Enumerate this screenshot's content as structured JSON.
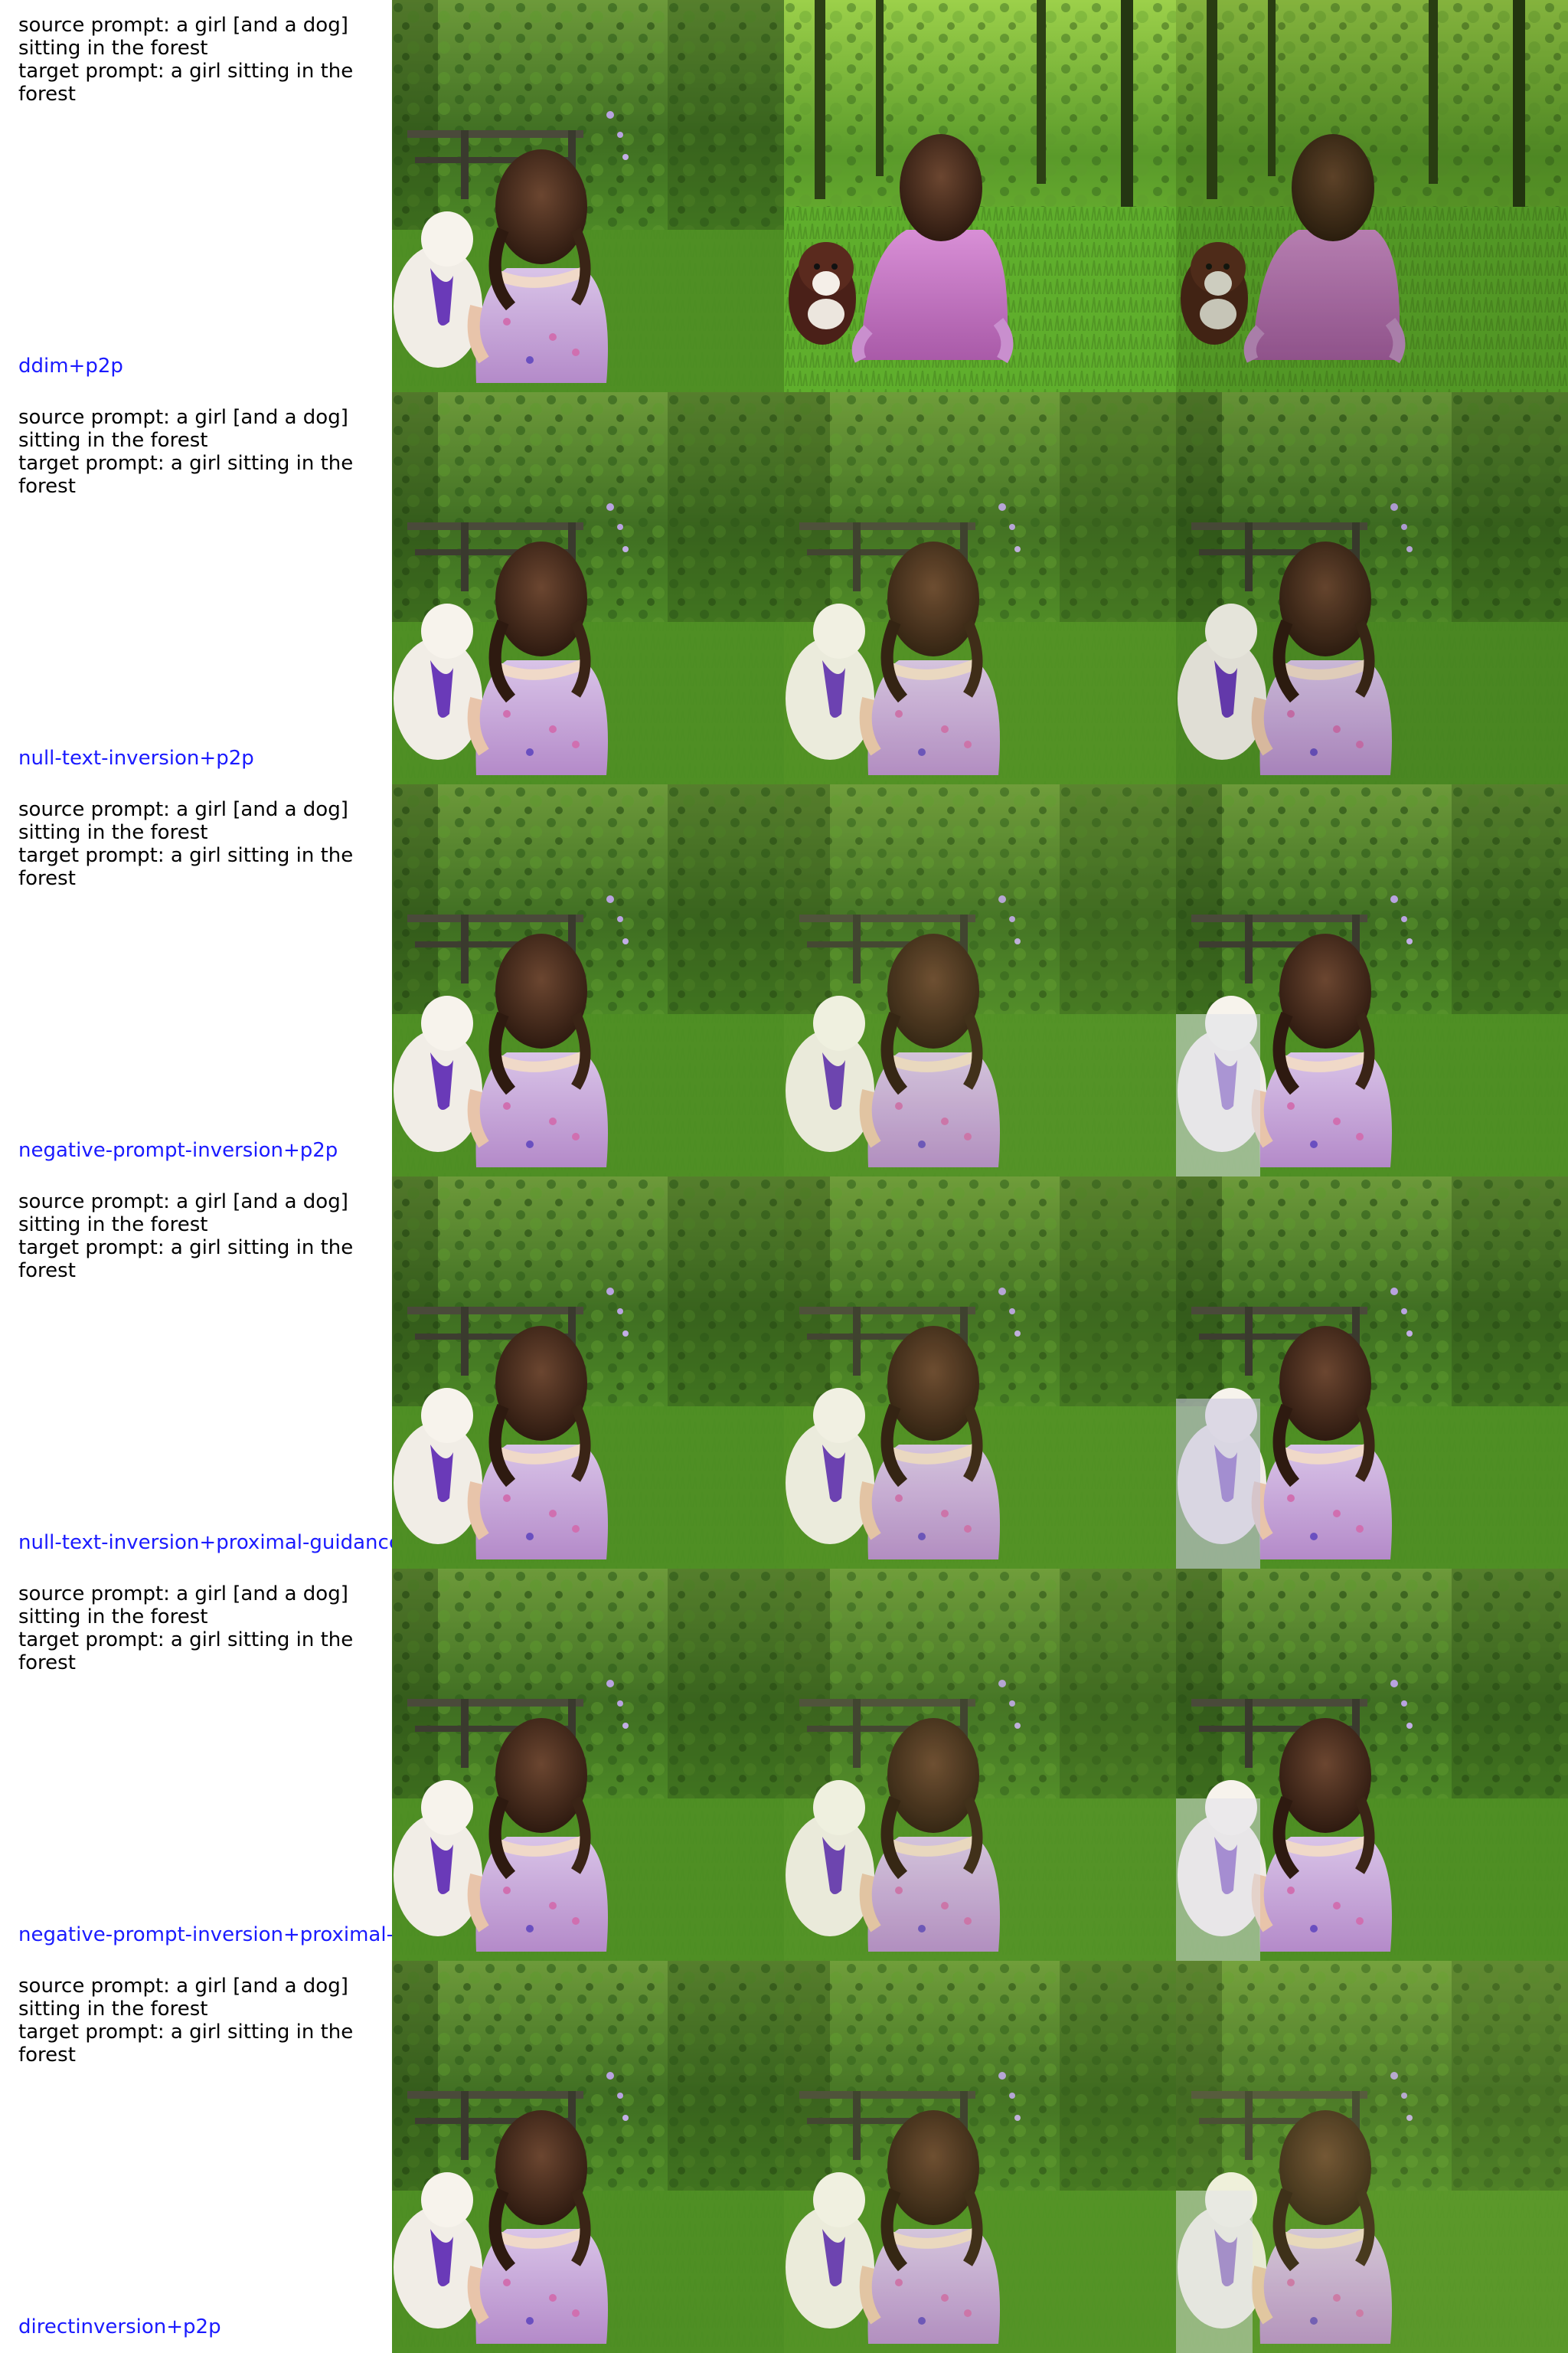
{
  "colors": {
    "label_text": "#000000",
    "method_label": "#1a1aff",
    "background": "#ffffff"
  },
  "rows": [
    {
      "source_prompt": "source prompt: a girl [and a dog] sitting in the forest",
      "target_prompt": "target prompt: a girl sitting in the forest",
      "method": "ddim+p2p",
      "images": [
        {
          "semantic": "source-image-girl-white-dog"
        },
        {
          "semantic": "edited-image-girl-brown-dog-pink-top"
        },
        {
          "semantic": "edited-image-girl-brown-dog-pink-top"
        }
      ]
    },
    {
      "source_prompt": "source prompt: a girl [and a dog] sitting in the forest",
      "target_prompt": "target prompt: a girl sitting in the forest",
      "method": "null-text-inversion+p2p",
      "images": [
        {
          "semantic": "source-image-girl-white-dog"
        },
        {
          "semantic": "edited-image-girl-white-dog"
        },
        {
          "semantic": "edited-image-girl-white-dog"
        }
      ]
    },
    {
      "source_prompt": "source prompt: a girl [and a dog] sitting in the forest",
      "target_prompt": "target prompt: a girl sitting in the forest",
      "method": "negative-prompt-inversion+p2p",
      "images": [
        {
          "semantic": "source-image-girl-white-dog"
        },
        {
          "semantic": "edited-image-girl-white-dog"
        },
        {
          "semantic": "edited-image-girl-partial-dog"
        }
      ]
    },
    {
      "source_prompt": "source prompt: a girl [and a dog] sitting in the forest",
      "target_prompt": "target prompt: a girl sitting in the forest",
      "method": "null-text-inversion+proximal-guidance",
      "images": [
        {
          "semantic": "source-image-girl-white-dog"
        },
        {
          "semantic": "edited-image-girl-white-dog"
        },
        {
          "semantic": "edited-image-girl-faded-dog"
        }
      ]
    },
    {
      "source_prompt": "source prompt: a girl [and a dog] sitting in the forest",
      "target_prompt": "target prompt: a girl sitting in the forest",
      "method": "negative-prompt-inversion+proximal-g",
      "images": [
        {
          "semantic": "source-image-girl-white-dog"
        },
        {
          "semantic": "edited-image-girl-white-dog"
        },
        {
          "semantic": "edited-image-girl-partial-dog"
        }
      ]
    },
    {
      "source_prompt": "source prompt: a girl [and a dog] sitting in the forest",
      "target_prompt": "target prompt: a girl sitting in the forest",
      "method": "directinversion+p2p",
      "images": [
        {
          "semantic": "source-image-girl-white-dog"
        },
        {
          "semantic": "edited-image-girl-white-dog"
        },
        {
          "semantic": "edited-image-girl-partial-dog"
        }
      ]
    }
  ]
}
